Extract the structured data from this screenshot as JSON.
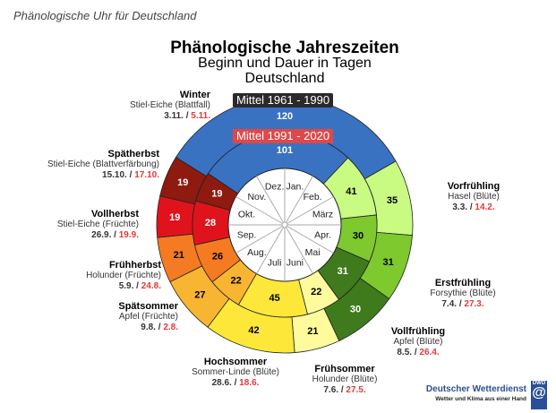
{
  "header": "Phänologische Uhr für Deutschland",
  "title": "Phänologische Jahreszeiten",
  "subtitle": "Beginn und Dauer in Tagen",
  "region": "Deutschland",
  "period_old": "Mittel 1961 - 1990",
  "period_new": "Mittel 1991 - 2020",
  "months": [
    "Jan.",
    "Feb.",
    "März",
    "Apr.",
    "Mai",
    "Juni",
    "Juli",
    "Aug.",
    "Sep.",
    "Okt.",
    "Nov.",
    "Dez."
  ],
  "seasons": [
    {
      "name": "Winter",
      "indicator": "Stiel-Eiche (Blattfall)",
      "start_old": "3.11.",
      "start_new": "5.11.",
      "days_old": 120,
      "days_new": 101,
      "color": "#3a72c2",
      "text_color": "#ffffff"
    },
    {
      "name": "Vorfrühling",
      "indicator": "Hasel (Blüte)",
      "start_old": "3.3.",
      "start_new": "14.2.",
      "days_old": 35,
      "days_new": 41,
      "color": "#c9fa82",
      "text_color": "#000000"
    },
    {
      "name": "Erstfrühling",
      "indicator": "Forsythie (Blüte)",
      "start_old": "7.4.",
      "start_new": "27.3.",
      "days_old": 31,
      "days_new": 30,
      "color": "#7dc92e",
      "text_color": "#000000"
    },
    {
      "name": "Vollfrühling",
      "indicator": "Apfel (Blüte)",
      "start_old": "8.5.",
      "start_new": "26.4.",
      "days_old": 30,
      "days_new": 31,
      "color": "#3f7a1c",
      "text_color": "#ffffff"
    },
    {
      "name": "Frühsommer",
      "indicator": "Holunder (Blüte)",
      "start_old": "7.6.",
      "start_new": "27.5.",
      "days_old": 21,
      "days_new": 22,
      "color": "#fdfb9c",
      "text_color": "#000000"
    },
    {
      "name": "Hochsommer",
      "indicator": "Sommer-Linde (Blüte)",
      "start_old": "28.6.",
      "start_new": "18.6.",
      "days_old": 42,
      "days_new": 45,
      "color": "#fde83a",
      "text_color": "#000000"
    },
    {
      "name": "Spätsommer",
      "indicator": "Apfel (Früchte)",
      "start_old": "9.8.",
      "start_new": "2.8.",
      "days_old": 27,
      "days_new": 22,
      "color": "#f8b532",
      "text_color": "#000000"
    },
    {
      "name": "Frühherbst",
      "indicator": "Holunder (Früchte)",
      "start_old": "5.9.",
      "start_new": "24.8.",
      "days_old": 21,
      "days_new": 26,
      "color": "#f47b22",
      "text_color": "#000000"
    },
    {
      "name": "Vollherbst",
      "indicator": "Stiel-Eiche (Früchte)",
      "start_old": "26.9.",
      "start_new": "19.9.",
      "days_old": 19,
      "days_new": 28,
      "color": "#e0131d",
      "text_color": "#ffffff"
    },
    {
      "name": "Spätherbst",
      "indicator": "Stiel-Eiche (Blattverfärbung)",
      "start_old": "15.10.",
      "start_new": "17.10.",
      "days_old": 19,
      "days_new": 19,
      "color": "#8e1a10",
      "text_color": "#ffffff"
    }
  ],
  "logo": {
    "name": "Deutscher Wetterdienst",
    "tagline": "Wetter und Klima aus einer Hand",
    "mark": "DWD"
  }
}
